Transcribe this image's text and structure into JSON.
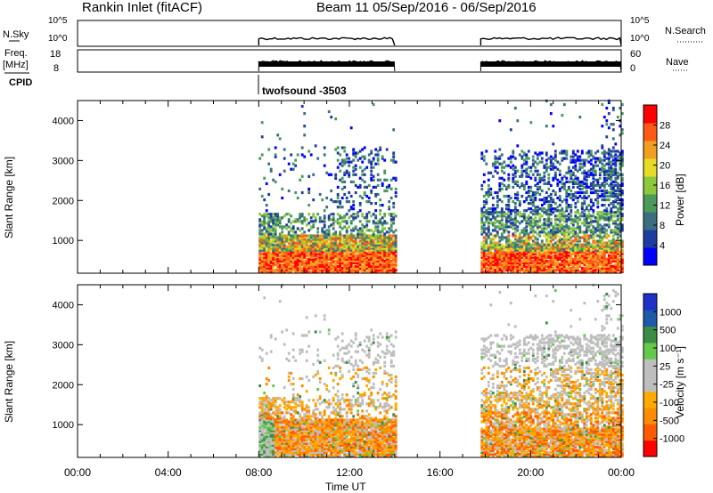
{
  "header": {
    "title": "Rankin Inlet (fitACF)",
    "beam_range": "Beam 11  05/Sep/2016 - 06/Sep/2016"
  },
  "strips": {
    "nsky_label": "N.Sky",
    "nsky_ticks": [
      "10^5",
      "10^0"
    ],
    "nsearch_label": "N.Search",
    "nsearch_ticks": [
      "10^5",
      "10^0"
    ],
    "freq_label": "Freq.",
    "freq_unit": "[MHz]",
    "freq_ticks": [
      "18",
      "8"
    ],
    "nave_label": "Nave",
    "nave_ticks": [
      "60",
      "0"
    ],
    "cpid_label": "CPID",
    "cpid_value": "twofsound -3503"
  },
  "colors": {
    "power": [
      "#0000ff",
      "#1e3ca0",
      "#3c6e82",
      "#4b9a5a",
      "#8cc83c",
      "#e6dc28",
      "#f0a01e",
      "#ff5a14",
      "#ff0000"
    ],
    "velocity": [
      "#ff0000",
      "#ff5a00",
      "#ff8c00",
      "#ffaa00",
      "#bebebe",
      "#bebebe",
      "#64c84b",
      "#3c8c46",
      "#1e5aaa",
      "#1e32c8"
    ]
  },
  "chart_data": [
    {
      "type": "heatmap",
      "name": "power",
      "xlabel": "",
      "ylabel": "Slant Range [km]",
      "x_ticks": [
        "00:00",
        "04:00",
        "08:00",
        "12:00",
        "16:00",
        "20:00",
        "00:00"
      ],
      "xlim_hours": [
        0,
        24
      ],
      "ylim": [
        180,
        4500
      ],
      "y_ticks": [
        1000,
        2000,
        3000,
        4000
      ],
      "data_windows_ut": [
        [
          8.0,
          14.0
        ],
        [
          17.8,
          24.0
        ]
      ],
      "colorbar": {
        "label": "Power [dB]",
        "ticks": [
          4,
          8,
          12,
          16,
          20,
          24,
          28
        ],
        "range": [
          0,
          32
        ]
      }
    },
    {
      "type": "heatmap",
      "name": "velocity",
      "xlabel": "Time UT",
      "ylabel": "Slant Range [km]",
      "x_ticks": [
        "00:00",
        "04:00",
        "08:00",
        "12:00",
        "16:00",
        "20:00",
        "00:00"
      ],
      "xlim_hours": [
        0,
        24
      ],
      "ylim": [
        180,
        4500
      ],
      "y_ticks": [
        1000,
        2000,
        3000,
        4000
      ],
      "data_windows_ut": [
        [
          8.0,
          14.0
        ],
        [
          17.8,
          24.0
        ]
      ],
      "colorbar": {
        "label": "Velocity [m s⁻¹]",
        "ticks": [
          "1000",
          "500",
          "100",
          "25",
          "-25",
          "-100",
          "-500",
          "-1000"
        ]
      }
    }
  ]
}
